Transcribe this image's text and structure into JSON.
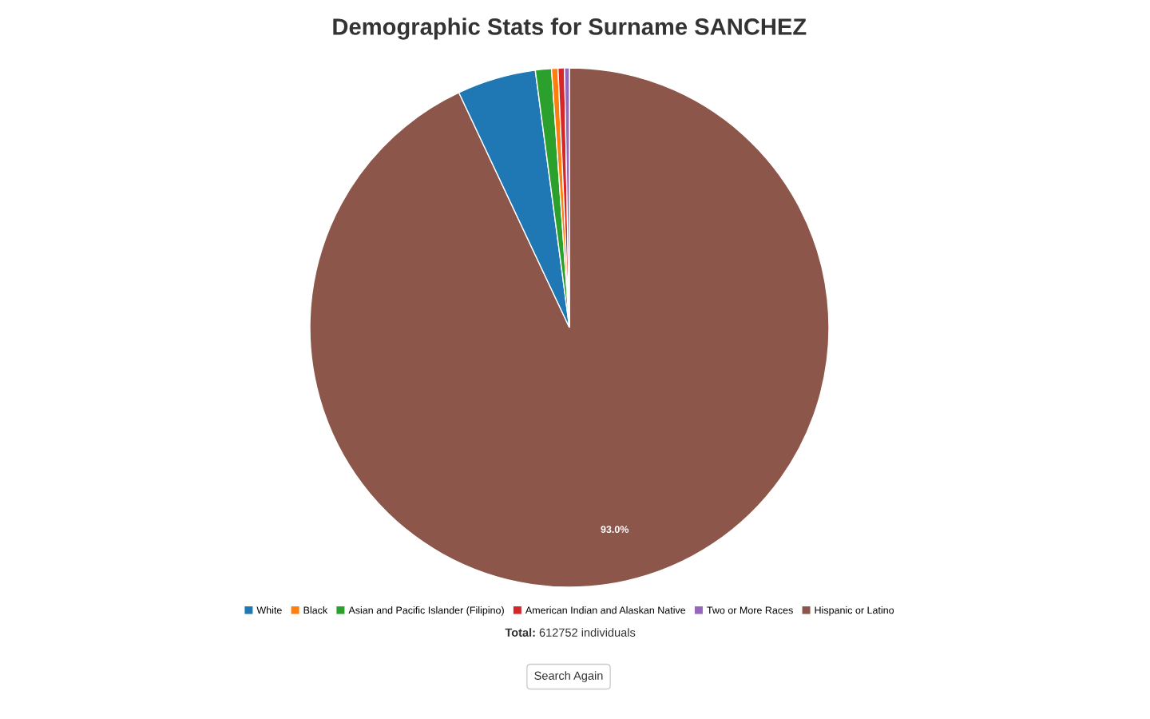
{
  "chart_data": {
    "type": "pie",
    "title": "Demographic Stats for Surname SANCHEZ",
    "categories": [
      "White",
      "Black",
      "Asian and Pacific Islander (Filipino)",
      "American Indian and Alaskan Native",
      "Two or More Races",
      "Hispanic or Latino"
    ],
    "values": [
      4.9,
      0.4,
      1.0,
      0.4,
      0.3,
      93.0
    ],
    "colors": [
      "#1f77b4",
      "#ff7f0e",
      "#2ca02c",
      "#d62728",
      "#9467bd",
      "#8c564b"
    ],
    "value_labels": [
      null,
      null,
      null,
      null,
      null,
      "93.0%"
    ],
    "legend": "bottom",
    "annotations": [
      "Total: 612752 individuals",
      "Search Again"
    ]
  }
}
